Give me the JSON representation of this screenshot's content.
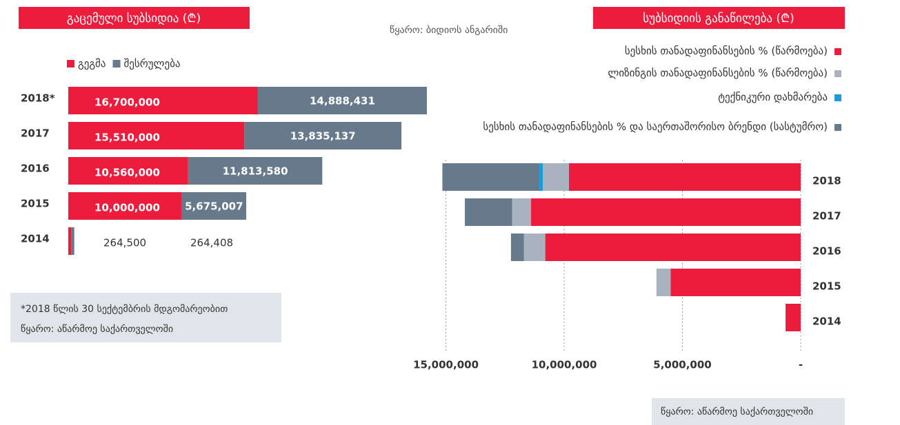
{
  "source": "წყარო: ბიდიოს ანგარიში",
  "chart_data": [
    {
      "type": "bar",
      "orientation": "horizontal",
      "stacked": true,
      "title": "გაცემული სუბსიდია (₾)",
      "categories": [
        "2018*",
        "2017",
        "2016",
        "2015",
        "2014"
      ],
      "series": [
        {
          "name": "გეგმა",
          "color": "#ec1c3c",
          "values": [
            16700000,
            15510000,
            10560000,
            10000000,
            264500
          ],
          "value_labels": [
            "16,700,000",
            "15,510,000",
            "10,560,000",
            "10,000,000",
            "264,500"
          ]
        },
        {
          "name": "შესრულება",
          "color": "#677a8c",
          "values": [
            14888431,
            13835137,
            11813580,
            5675007,
            264408
          ],
          "value_labels": [
            "14,888,431",
            "13,835,137",
            "11,813,580",
            "5,675,007",
            "264,408"
          ]
        }
      ],
      "notes": [
        "*2018 წლის 30 სექტემბრის მდგომარეობით",
        "წყარო: აწარმოე საქართველოში"
      ]
    },
    {
      "type": "bar",
      "orientation": "horizontal",
      "stacked": true,
      "reversed": true,
      "title": "სუბსიდიის განაწილება (₾)",
      "categories": [
        "2018",
        "2017",
        "2016",
        "2015",
        "2014"
      ],
      "series": [
        {
          "name": "სესხის თანადაფინანსების % (წარმოება)",
          "color": "#ec1c3c",
          "values": [
            9800000,
            11400000,
            10800000,
            5500000,
            640000
          ]
        },
        {
          "name": "ლიზინგის თანადაფინანსების % (წარმოება)",
          "color": "#a8b3bf",
          "values": [
            1100000,
            800000,
            900000,
            600000,
            0
          ]
        },
        {
          "name": "ტექნიკური დახმარება",
          "color": "#1b9cd8",
          "values": [
            150000,
            0,
            0,
            0,
            0
          ]
        },
        {
          "name": "სესხის თანადაფინანსების % და საერთაშორისო ბრენდი (სასტუმრო)",
          "color": "#677a8c",
          "values": [
            4100000,
            2000000,
            550000,
            0,
            0
          ]
        }
      ],
      "xlim": [
        0,
        15600000
      ],
      "xticks": [
        {
          "value": 15000000,
          "label": "15,000,000"
        },
        {
          "value": 10000000,
          "label": "10,000,000"
        },
        {
          "value": 5000000,
          "label": "5,000,000"
        },
        {
          "value": 0,
          "label": "-"
        }
      ],
      "grid": true,
      "source": "წყარო: აწარმოე საქართველოში"
    }
  ]
}
